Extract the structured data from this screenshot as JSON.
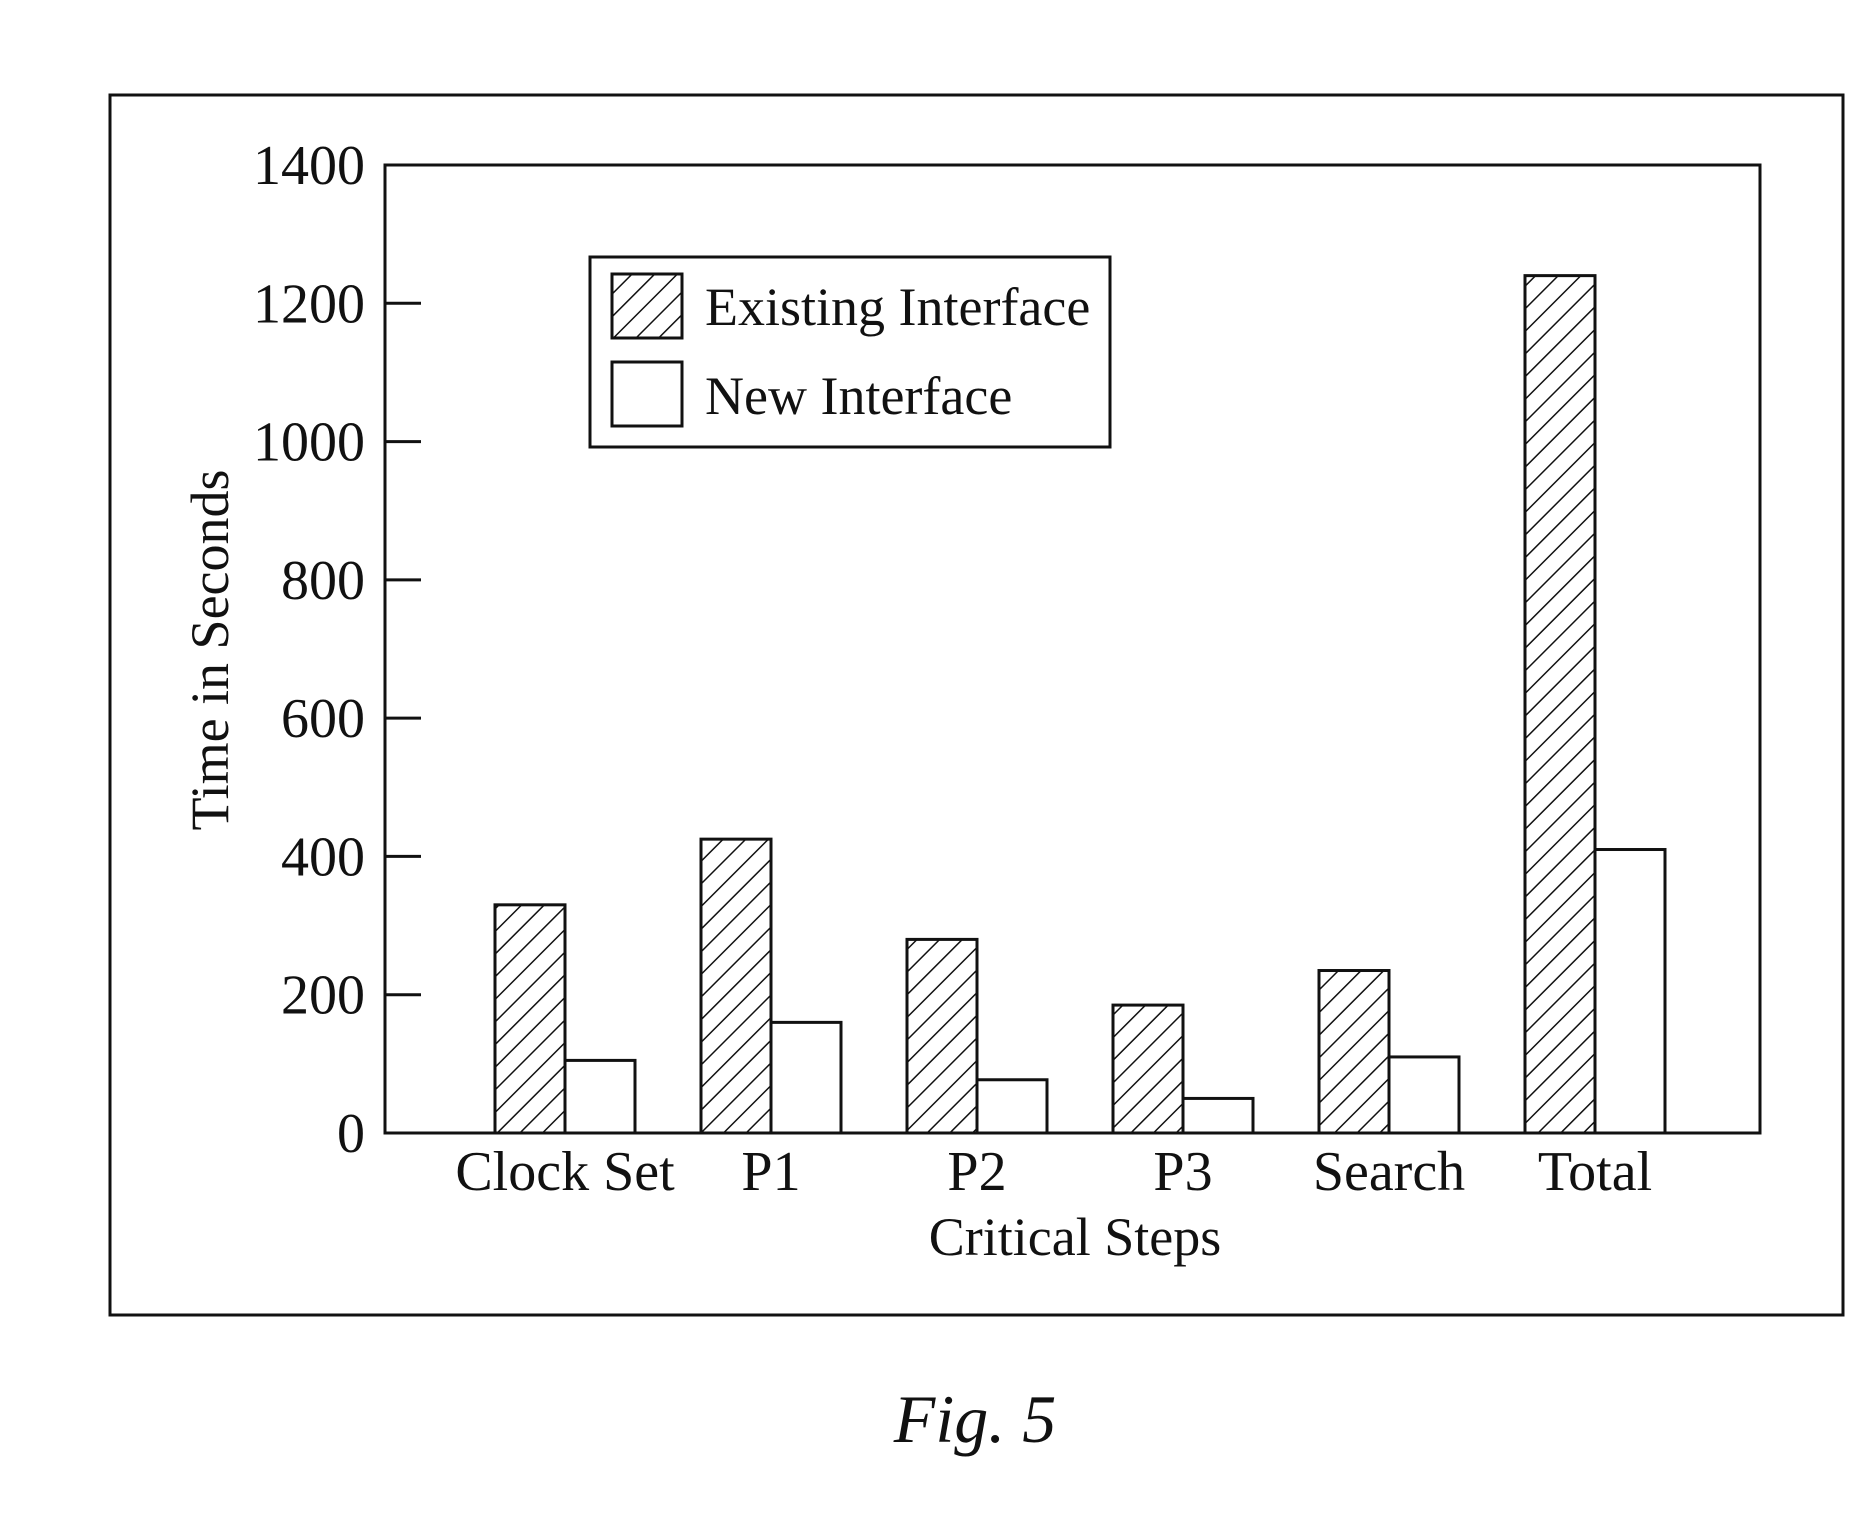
{
  "chart_data": {
    "type": "bar",
    "categories": [
      "Clock Set",
      "P1",
      "P2",
      "P3",
      "Search",
      "Total"
    ],
    "series": [
      {
        "name": "Existing Interface",
        "values": [
          330,
          425,
          280,
          185,
          235,
          1240
        ],
        "pattern": "hatch"
      },
      {
        "name": "New Interface",
        "values": [
          105,
          160,
          77,
          50,
          110,
          410
        ],
        "pattern": "plain"
      }
    ],
    "title": "",
    "xlabel": "Critical Steps",
    "ylabel": "Time in Seconds",
    "ylim": [
      0,
      1400
    ],
    "yticks": [
      "0",
      "200",
      "400",
      "600",
      "800",
      "1000",
      "1200",
      "1400"
    ],
    "grid": false,
    "legend_position": "top-left"
  },
  "caption": "Fig. 5",
  "colors": {
    "ink": "#111111",
    "bar_fill": "#ffffff"
  }
}
